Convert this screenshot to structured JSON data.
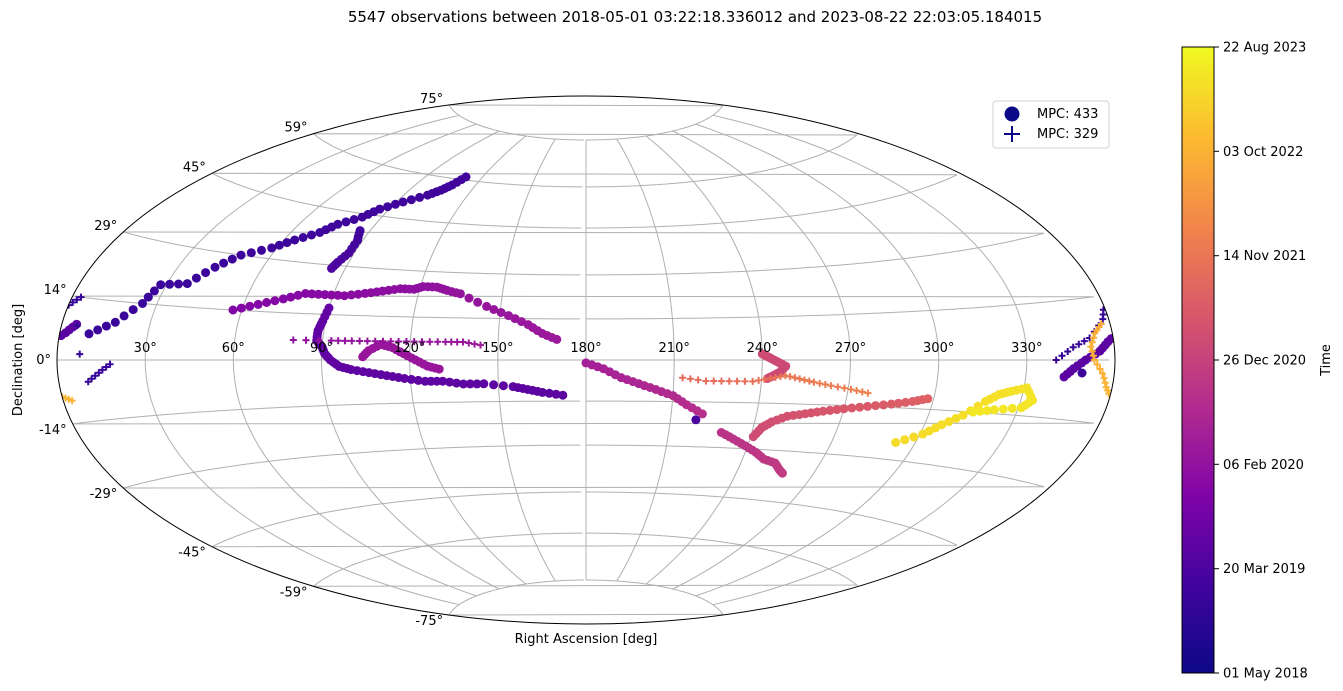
{
  "chart_data": {
    "type": "scatter",
    "projection": "aitoff",
    "title": "5547 observations between 2018-05-01 03:22:18.336012 and 2023-08-22 22:03:05.184015",
    "xlabel": "Right Ascension [deg]",
    "ylabel": "Declination [deg]",
    "grid": true,
    "x_tick_labels": [
      "30°",
      "60°",
      "90°",
      "120°",
      "150°",
      "180°",
      "210°",
      "240°",
      "270°",
      "300°",
      "330°"
    ],
    "y_tick_labels": [
      "-75°",
      "-59°",
      "-45°",
      "-29°",
      "-14°",
      "0°",
      "14°",
      "29°",
      "45°",
      "59°",
      "75°"
    ],
    "legend": {
      "placement": "top-right",
      "entries": [
        {
          "label": "MPC: 433",
          "marker": "circle"
        },
        {
          "label": "MPC: 329",
          "marker": "plus"
        }
      ]
    },
    "colorbar": {
      "label": "Time",
      "colormap": "plasma",
      "tick_labels": [
        "01 May 2018",
        "20 Mar 2019",
        "06 Feb 2020",
        "26 Dec 2020",
        "14 Nov 2021",
        "03 Oct 2022",
        "22 Aug 2023"
      ]
    },
    "series": [
      {
        "name": "MPC: 433",
        "marker": "circle",
        "tracks": [
          {
            "t0": 0.2,
            "t1": 0.2,
            "points": [
              [
                343,
                -4
              ],
              [
                346,
                -2
              ],
              [
                350,
                0
              ],
              [
                355,
                2
              ],
              [
                358,
                4
              ],
              [
                2,
                6
              ],
              [
                5,
                8
              ]
            ]
          },
          {
            "t0": 0.13,
            "t1": 0.13,
            "points": [
              [
                349,
                -3
              ]
            ]
          },
          {
            "t0": 0.12,
            "t1": 0.14,
            "points": [
              [
                10,
                6
              ],
              [
                18,
                9
              ],
              [
                25,
                14
              ],
              [
                28,
                19
              ],
              [
                37,
                20
              ],
              [
                43,
                25
              ],
              [
                49,
                29
              ],
              [
                58,
                32
              ],
              [
                64,
                35
              ],
              [
                71,
                38
              ],
              [
                75,
                41
              ],
              [
                82,
                44
              ],
              [
                86,
                47
              ],
              [
                93,
                50
              ],
              [
                101,
                53
              ],
              [
                105,
                55
              ],
              [
                108,
                57
              ],
              [
                111,
                60
              ]
            ]
          },
          {
            "t0": 0.14,
            "t1": 0.17,
            "points": [
              [
                86,
                40
              ],
              [
                88,
                37
              ],
              [
                88,
                33
              ],
              [
                86,
                30
              ],
              [
                85,
                28
              ]
            ]
          },
          {
            "t0": 0.22,
            "t1": 0.2,
            "points": [
              [
                90,
                16
              ],
              [
                89,
                12
              ],
              [
                88,
                9
              ],
              [
                88,
                6
              ],
              [
                90,
                4
              ],
              [
                91,
                2
              ],
              [
                93,
                0
              ],
              [
                96,
                -2
              ],
              [
                100,
                -3
              ],
              [
                106,
                -4
              ],
              [
                112,
                -5
              ],
              [
                118,
                -6
              ],
              [
                125,
                -7
              ],
              [
                131,
                -7
              ],
              [
                138,
                -8
              ],
              [
                145,
                -8
              ],
              [
                155,
                -9
              ],
              [
                160,
                -10
              ],
              [
                165,
                -11
              ],
              [
                172,
                -12
              ]
            ]
          },
          {
            "t0": 0.29,
            "t1": 0.36,
            "points": [
              [
                57,
                14
              ],
              [
                65,
                16
              ],
              [
                73,
                18
              ],
              [
                80,
                20
              ],
              [
                87,
                20
              ],
              [
                94,
                20
              ],
              [
                101,
                21
              ],
              [
                107,
                22
              ],
              [
                113,
                23
              ],
              [
                118,
                23
              ],
              [
                121,
                24
              ],
              [
                126,
                24
              ],
              [
                130,
                23
              ],
              [
                135,
                22
              ],
              [
                145,
                18
              ],
              [
                153,
                15
              ],
              [
                160,
                12
              ],
              [
                165,
                9
              ],
              [
                170,
                7
              ]
            ]
          },
          {
            "t0": 0.35,
            "t1": 0.35,
            "points": [
              [
                104,
                1
              ],
              [
                106,
                3
              ],
              [
                110,
                5
              ],
              [
                114,
                4
              ],
              [
                118,
                2
              ],
              [
                122,
                0
              ],
              [
                126,
                -2
              ],
              [
                130,
                -3
              ]
            ]
          },
          {
            "t0": 0.38,
            "t1": 0.44,
            "points": [
              [
                180,
                -1
              ],
              [
                186,
                -3
              ],
              [
                192,
                -6
              ],
              [
                198,
                -8
              ],
              [
                204,
                -10
              ],
              [
                210,
                -12
              ],
              [
                215,
                -15
              ],
              [
                221,
                -18
              ]
            ]
          },
          {
            "t0": 0.45,
            "t1": 0.48,
            "points": [
              [
                229,
                -24
              ],
              [
                234,
                -26
              ],
              [
                239,
                -28
              ],
              [
                244,
                -30
              ],
              [
                248,
                -32
              ],
              [
                253,
                -33
              ],
              [
                256,
                -35
              ],
              [
                258,
                -36
              ]
            ]
          },
          {
            "t0": 0.53,
            "t1": 0.6,
            "points": [
              [
                241,
                -25
              ],
              [
                243,
                -22
              ],
              [
                246,
                -20
              ],
              [
                251,
                -18
              ],
              [
                257,
                -17
              ],
              [
                263,
                -16
              ],
              [
                270,
                -15
              ],
              [
                278,
                -14
              ],
              [
                286,
                -13
              ],
              [
                293,
                -12
              ],
              [
                298,
                -11
              ]
            ]
          },
          {
            "t0": 0.53,
            "t1": 0.52,
            "points": [
              [
                240,
                2
              ],
              [
                242,
                1
              ],
              [
                244,
                0
              ],
              [
                246,
                -1
              ],
              [
                248,
                -2
              ],
              [
                246,
                -4
              ],
              [
                244,
                -5
              ],
              [
                242,
                -6
              ]
            ]
          },
          {
            "t0": 0.16,
            "t1": 0.16,
            "points": [
              [
                219,
                -20
              ]
            ]
          },
          {
            "t0": 0.93,
            "t1": 0.96,
            "points": [
              [
                293,
                -24
              ],
              [
                301,
                -21
              ],
              [
                306,
                -18
              ],
              [
                312,
                -15
              ],
              [
                318,
                -11
              ],
              [
                322,
                -9
              ],
              [
                326,
                -8
              ],
              [
                331,
                -7
              ],
              [
                334,
                -10
              ],
              [
                331,
                -12
              ],
              [
                322,
                -13
              ],
              [
                315,
                -14
              ]
            ]
          }
        ]
      },
      {
        "name": "MPC: 329",
        "marker": "plus",
        "tracks": [
          {
            "t0": 0.1,
            "t1": 0.12,
            "points": [
              [
                340,
                0
              ],
              [
                346,
                3
              ],
              [
                352,
                5
              ],
              [
                358,
                9
              ],
              [
                0,
                12
              ],
              [
                3,
                14
              ],
              [
                10,
                -5
              ],
              [
                14,
                -3
              ],
              [
                18,
                -1
              ]
            ]
          },
          {
            "t0": 0.82,
            "t1": 0.84,
            "points": [
              [
                357,
                8
              ],
              [
                354,
                6
              ],
              [
                352,
                3
              ],
              [
                353,
                0
              ],
              [
                356,
                -3
              ],
              [
                358,
                -6
              ],
              [
                0,
                -8
              ],
              [
                3,
                -9
              ]
            ]
          },
          {
            "t0": 0.33,
            "t1": 0.36,
            "points": [
              [
                80,
                6
              ],
              [
                93,
                6
              ],
              [
                100,
                6
              ],
              [
                108,
                6
              ],
              [
                116,
                6
              ],
              [
                124,
                6
              ],
              [
                132,
                6
              ],
              [
                138,
                6
              ],
              [
                144,
                5
              ]
            ]
          },
          {
            "t0": 0.63,
            "t1": 0.7,
            "points": [
              [
                213,
                -6
              ],
              [
                221,
                -7
              ],
              [
                229,
                -7
              ],
              [
                237,
                -7
              ],
              [
                243,
                -6
              ],
              [
                248,
                -5
              ],
              [
                253,
                -6
              ],
              [
                258,
                -7
              ],
              [
                264,
                -8
              ],
              [
                271,
                -9
              ],
              [
                277,
                -10
              ]
            ]
          }
        ]
      }
    ]
  }
}
